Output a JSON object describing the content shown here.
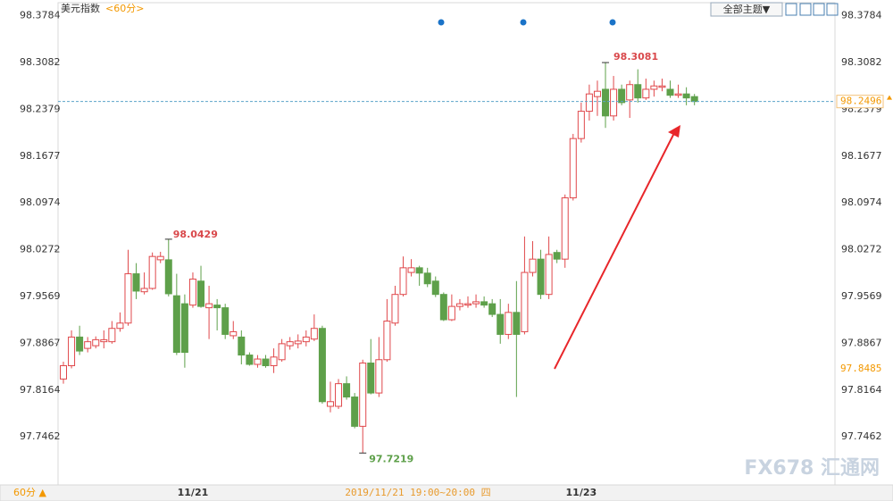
{
  "chart_data": {
    "type": "candlestick",
    "title": "美元指数",
    "period": "<60分>",
    "theme_button": "全部主题▼",
    "period_button": "60分 ▲",
    "cursor_time": "2019/11/21 19:00~20:00 四",
    "cursor_value": 97.8485,
    "watermark": "FX678 汇通网",
    "up_color": "#e0484b",
    "down_color": "#5ea04a",
    "last_color": "#f39800",
    "ylim": [
      97.674,
      98.398
    ],
    "yticks": [
      98.3784,
      98.3082,
      98.2379,
      98.1677,
      98.0974,
      98.0272,
      97.9569,
      97.8867,
      97.8164,
      97.7462
    ],
    "categories": [
      null,
      null,
      null,
      null,
      null,
      null,
      null,
      null,
      null,
      null,
      null,
      null,
      null,
      null,
      null,
      null,
      "11/21",
      null,
      null,
      null,
      null,
      null,
      null,
      null,
      null,
      null,
      null,
      null,
      null,
      null,
      null,
      null,
      null,
      null,
      null,
      null,
      null,
      null,
      null,
      null,
      null,
      null,
      null,
      null,
      null,
      null,
      null,
      null,
      null,
      null,
      null,
      null,
      null,
      null,
      null,
      null,
      null,
      null,
      null,
      null,
      null,
      null,
      null,
      null,
      "11/23",
      null,
      null,
      null,
      null,
      null,
      null,
      null,
      null,
      null,
      null,
      null,
      null,
      null,
      null
    ],
    "open": [
      97.833,
      97.853,
      97.896,
      97.879,
      97.883,
      97.889,
      97.889,
      97.909,
      97.917,
      97.991,
      97.964,
      97.969,
      98.012,
      98.012,
      97.958,
      97.946,
      97.944,
      97.98,
      97.94,
      97.944,
      97.94,
      97.898,
      97.896,
      97.869,
      97.855,
      97.863,
      97.853,
      97.862,
      97.883,
      97.886,
      97.889,
      97.893,
      97.909,
      97.792,
      97.792,
      97.826,
      97.806,
      97.762,
      97.857,
      97.812,
      97.862,
      97.917,
      97.96,
      97.993,
      98.0,
      97.992,
      97.98,
      97.96,
      97.922,
      97.942,
      97.944,
      97.946,
      97.949,
      97.946,
      97.93,
      97.9,
      97.933,
      97.904,
      97.993,
      98.013,
      97.96,
      98.023,
      98.013,
      98.105,
      98.194,
      98.235,
      98.257,
      98.268,
      98.228,
      98.268,
      98.252,
      98.275,
      98.255,
      98.268,
      98.271,
      98.268,
      98.259,
      98.261,
      98.257
    ],
    "high": [
      97.859,
      97.906,
      97.913,
      97.896,
      97.897,
      97.906,
      97.92,
      97.933,
      98.027,
      98.007,
      97.993,
      98.023,
      98.024,
      98.0429,
      97.991,
      97.96,
      97.993,
      98.003,
      97.973,
      97.953,
      97.946,
      97.92,
      97.906,
      97.873,
      97.869,
      97.869,
      97.879,
      97.893,
      97.896,
      97.9,
      97.906,
      97.93,
      97.913,
      97.829,
      97.833,
      97.837,
      97.812,
      97.862,
      97.893,
      97.896,
      97.953,
      97.973,
      98.017,
      98.013,
      98.003,
      98.0,
      97.987,
      97.963,
      97.96,
      97.953,
      97.957,
      97.96,
      97.957,
      97.953,
      97.953,
      97.946,
      97.98,
      98.047,
      98.04,
      98.027,
      98.047,
      98.027,
      98.11,
      98.201,
      98.248,
      98.275,
      98.281,
      98.3081,
      98.288,
      98.275,
      98.281,
      98.298,
      98.284,
      98.281,
      98.284,
      98.281,
      98.275,
      98.271,
      98.261
    ],
    "low": [
      97.826,
      97.849,
      97.869,
      97.873,
      97.879,
      97.879,
      97.886,
      97.904,
      97.913,
      97.953,
      97.96,
      97.967,
      98.007,
      97.957,
      97.869,
      97.85,
      97.94,
      97.94,
      97.893,
      97.906,
      97.893,
      97.893,
      97.855,
      97.853,
      97.85,
      97.85,
      97.842,
      97.859,
      97.877,
      97.879,
      97.882,
      97.89,
      97.796,
      97.783,
      97.788,
      97.802,
      97.759,
      97.7219,
      97.81,
      97.806,
      97.859,
      97.913,
      97.957,
      97.987,
      97.973,
      97.971,
      97.956,
      97.92,
      97.92,
      97.936,
      97.94,
      97.94,
      97.94,
      97.926,
      97.886,
      97.893,
      97.806,
      97.9,
      97.987,
      97.953,
      97.953,
      98.007,
      98.0,
      98.101,
      98.188,
      98.221,
      98.228,
      98.21,
      98.221,
      98.244,
      98.225,
      98.248,
      98.252,
      98.257,
      98.265,
      98.255,
      98.255,
      98.244,
      98.244
    ],
    "close": [
      97.853,
      97.896,
      97.875,
      97.889,
      97.892,
      97.892,
      97.909,
      97.917,
      97.991,
      97.965,
      97.969,
      98.017,
      98.017,
      97.961,
      97.873,
      97.873,
      97.983,
      97.942,
      97.946,
      97.94,
      97.9,
      97.904,
      97.869,
      97.855,
      97.863,
      97.853,
      97.866,
      97.886,
      97.889,
      97.89,
      97.896,
      97.909,
      97.799,
      97.799,
      97.826,
      97.806,
      97.762,
      97.857,
      97.812,
      97.862,
      97.92,
      97.96,
      98.0,
      98.0,
      97.992,
      97.976,
      97.96,
      97.922,
      97.942,
      97.946,
      97.946,
      97.949,
      97.944,
      97.93,
      97.9,
      97.933,
      97.9,
      97.993,
      98.013,
      97.96,
      98.02,
      98.013,
      98.105,
      98.194,
      98.235,
      98.261,
      98.265,
      98.228,
      98.268,
      98.248,
      98.275,
      98.255,
      98.268,
      98.273,
      98.273,
      98.259,
      98.261,
      98.255,
      98.2496
    ]
  }
}
